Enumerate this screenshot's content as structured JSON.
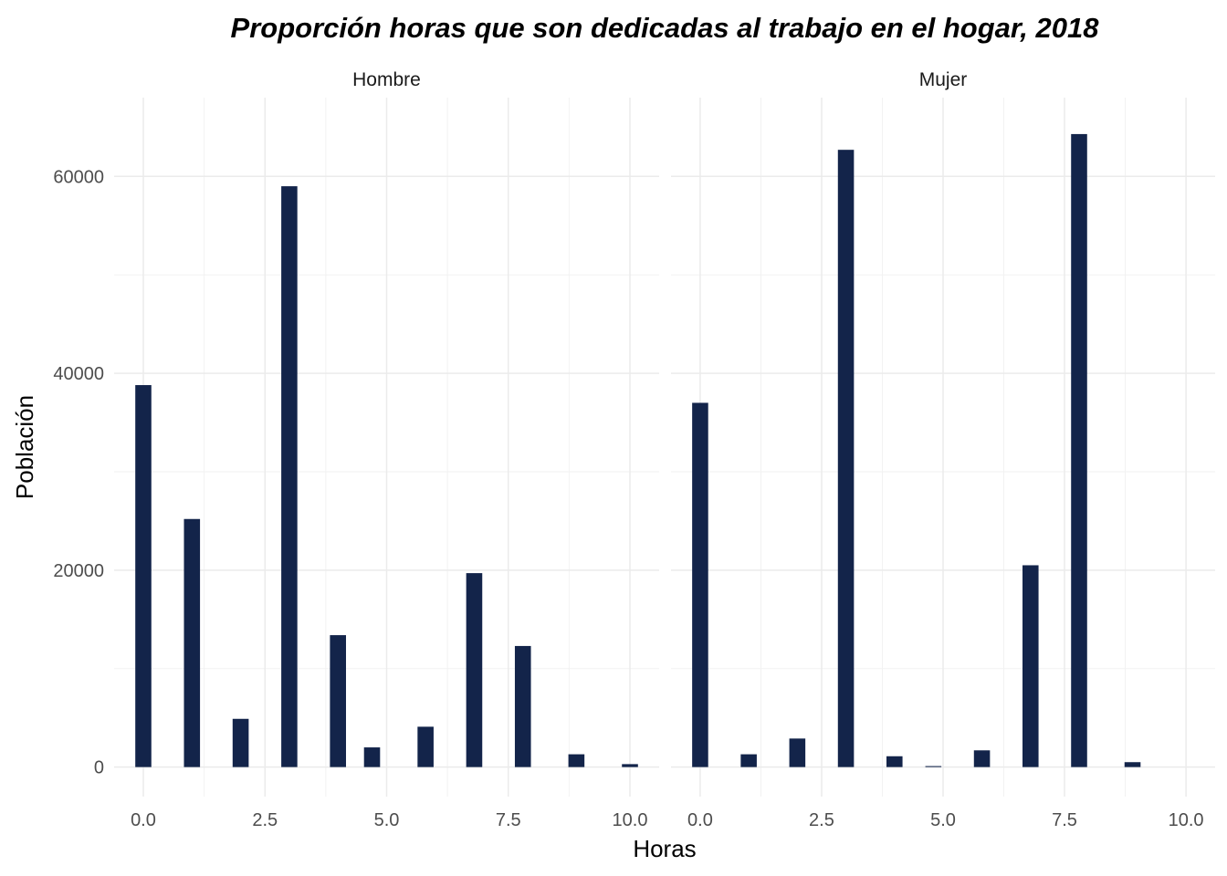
{
  "chart_data": {
    "type": "bar",
    "title": "Proporción horas que son dedicadas al trabajo en el hogar, 2018",
    "xlabel": "Horas",
    "ylabel": "Población",
    "xlim": [
      -0.6,
      10.6
    ],
    "ylim": [
      -3000,
      68000
    ],
    "x_ticks": [
      0,
      2.5,
      5,
      7.5,
      10
    ],
    "x_tick_labels": [
      "0.0",
      "2.5",
      "5.0",
      "7.5",
      "10.0"
    ],
    "y_ticks": [
      0,
      20000,
      40000,
      60000
    ],
    "y_tick_labels": [
      "0",
      "20000",
      "40000",
      "60000"
    ],
    "bar_width": 0.33,
    "bar_color": "#13244a",
    "grid": true,
    "panels": [
      {
        "label": "Hombre",
        "x": [
          0,
          1,
          2,
          3,
          4,
          4.7,
          5.8,
          6.8,
          7.8,
          8.9,
          10
        ],
        "values": [
          38800,
          25200,
          4900,
          59000,
          13400,
          2000,
          4100,
          19700,
          12300,
          1300,
          300
        ]
      },
      {
        "label": "Mujer",
        "x": [
          0,
          1,
          2,
          3,
          4,
          4.8,
          5.8,
          6.8,
          7.8,
          8.9
        ],
        "values": [
          37000,
          1300,
          2900,
          62700,
          1100,
          100,
          1700,
          20500,
          64300,
          500
        ]
      }
    ]
  }
}
